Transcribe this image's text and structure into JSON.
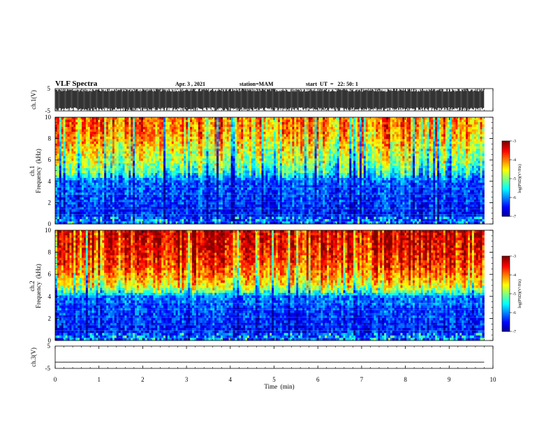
{
  "header": {
    "title": "VLF Spectra",
    "date": "Apr. 3  , 2021",
    "station": "station=MAM",
    "start": "start  UT  =   22: 50: 1"
  },
  "chart_data": [
    {
      "type": "line",
      "panel": "ch1-waveform",
      "ylabel": "ch.1(V)",
      "ylim": [
        -5,
        5
      ],
      "yticks": [
        "5",
        "-5"
      ],
      "description_values": "dense waveform spanning roughly -5 to 5 V"
    },
    {
      "type": "heatmap",
      "panel": "ch1-spectrogram",
      "ylabel": "ch.1\nFrequency (kHz)",
      "ylabel_line1": "ch.1",
      "ylabel_line2": "Frequency  (kHz)",
      "ylim": [
        0,
        10
      ],
      "yticks": [
        "0",
        "2",
        "4",
        "6",
        "8",
        "10"
      ],
      "zlim": [
        -7,
        -3
      ],
      "colorbar_ticks": [
        "-3",
        "-4",
        "-5",
        "-6",
        "-7"
      ],
      "colorbar_label": "log(PSD)(V²/Hz)",
      "profile": {
        "freq_khz": [
          0,
          1,
          2,
          3,
          4,
          4.5,
          5,
          6,
          7,
          8,
          9,
          10
        ],
        "log_psd": [
          -6.2,
          -6.4,
          -6.3,
          -6.2,
          -6.1,
          -5.6,
          -5.2,
          -4.8,
          -4.5,
          -4.2,
          -4.0,
          -3.9
        ]
      }
    },
    {
      "type": "heatmap",
      "panel": "ch2-spectrogram",
      "ylabel_line1": "ch.2",
      "ylabel_line2": "Frequency  (kHz)",
      "ylim": [
        0,
        10
      ],
      "yticks": [
        "0",
        "2",
        "4",
        "6",
        "8",
        "10"
      ],
      "zlim": [
        -7,
        -3
      ],
      "colorbar_ticks": [
        "-3",
        "-4",
        "-5",
        "-6",
        "-7"
      ],
      "colorbar_label": "log(PSD)(V²/Hz)",
      "profile": {
        "freq_khz": [
          0,
          1,
          2,
          3,
          4,
          4.5,
          5,
          6,
          7,
          8,
          9,
          10
        ],
        "log_psd": [
          -6.2,
          -6.4,
          -6.3,
          -6.2,
          -6.0,
          -5.0,
          -4.5,
          -4.0,
          -3.7,
          -3.5,
          -3.4,
          -3.3
        ]
      }
    },
    {
      "type": "line",
      "panel": "ch3-waveform",
      "ylabel": "ch.3(V)",
      "ylim": [
        -5,
        5
      ],
      "yticks": [
        "5",
        "-5"
      ],
      "x": [
        0,
        9.8
      ],
      "y": [
        -2.2,
        -2.2
      ]
    }
  ],
  "xaxis": {
    "label": "Time  (min)",
    "ticks": [
      "0",
      "1",
      "2",
      "3",
      "4",
      "5",
      "6",
      "7",
      "8",
      "9",
      "10"
    ],
    "xlim": [
      0,
      10
    ],
    "data_end": 9.8
  },
  "colors": {
    "jet": [
      "#00008f",
      "#0000ff",
      "#0080ff",
      "#00ffff",
      "#80ff80",
      "#ffff00",
      "#ff8000",
      "#ff0000",
      "#800000"
    ],
    "panel_bg": "#ffffff",
    "axis": "#000000"
  }
}
